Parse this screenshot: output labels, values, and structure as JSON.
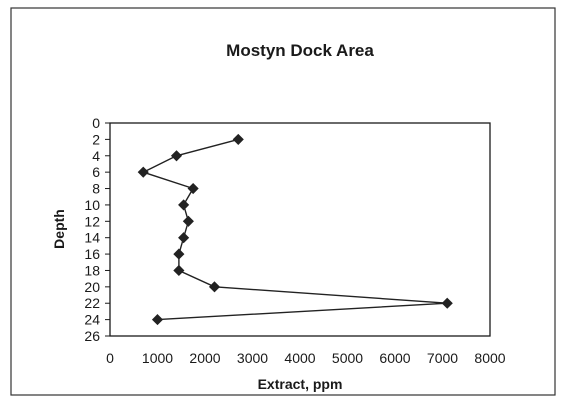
{
  "chart_data": {
    "type": "line",
    "title": "Mostyn Dock Area",
    "xlabel": "Extract, ppm",
    "ylabel": "Depth",
    "xlim": [
      0,
      8000
    ],
    "ylim": [
      0,
      26
    ],
    "y_inverted": true,
    "xticks": [
      "0",
      "1000",
      "2000",
      "3000",
      "4000",
      "5000",
      "6000",
      "7000",
      "8000"
    ],
    "yticks": [
      "0",
      "2",
      "4",
      "6",
      "8",
      "10",
      "12",
      "14",
      "16",
      "18",
      "20",
      "22",
      "24",
      "26"
    ],
    "grid": false,
    "legend": "none",
    "marker": "diamond",
    "line_color": "#222222",
    "series": [
      {
        "points": [
          {
            "x": 2700,
            "y": 2
          },
          {
            "x": 1400,
            "y": 4
          },
          {
            "x": 700,
            "y": 6
          },
          {
            "x": 1750,
            "y": 8
          },
          {
            "x": 1550,
            "y": 10
          },
          {
            "x": 1650,
            "y": 12
          },
          {
            "x": 1550,
            "y": 14
          },
          {
            "x": 1450,
            "y": 16
          },
          {
            "x": 1450,
            "y": 18
          },
          {
            "x": 2200,
            "y": 20
          },
          {
            "x": 7100,
            "y": 22
          },
          {
            "x": 1000,
            "y": 24
          }
        ]
      }
    ]
  }
}
